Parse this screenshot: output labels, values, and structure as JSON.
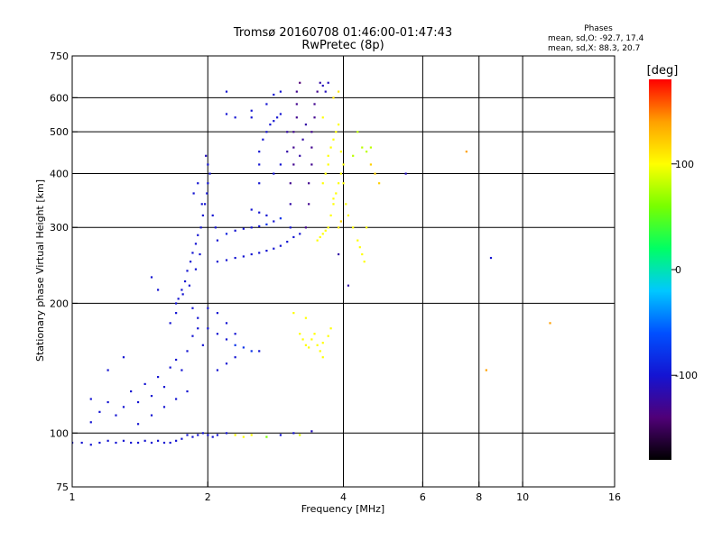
{
  "chart_data": {
    "type": "scatter",
    "title": "Tromsø 20160708 01:46:00-01:47:43",
    "subtitle": "RwPretec (8p)",
    "xlabel": "Frequency [MHz]",
    "ylabel": "Stationary phase Virtual Height [km]",
    "x_scale": "log",
    "y_scale": "log",
    "xlim": [
      1,
      16
    ],
    "ylim": [
      75,
      750
    ],
    "x_ticks": [
      1,
      2,
      4,
      6,
      8,
      10,
      16
    ],
    "x_tick_labels": [
      "1",
      "2",
      "4",
      "6",
      "8",
      "10",
      "16"
    ],
    "y_ticks": [
      75,
      100,
      200,
      300,
      400,
      500,
      600,
      750
    ],
    "y_tick_labels": [
      "75",
      "100",
      "200",
      "300",
      "400",
      "500",
      "600",
      "750"
    ],
    "x_grid": [
      2,
      4,
      6,
      8,
      10
    ],
    "y_grid": [
      100,
      200,
      300,
      400,
      500,
      600
    ],
    "grid": true,
    "stats": {
      "heading": "Phases",
      "line_o": "mean, sd,O: -92.7, 17.4",
      "line_x": "mean, sd,X:  88.3, 20.7"
    },
    "colorbar": {
      "label": "[deg]",
      "ticks": [
        100,
        0,
        -100
      ],
      "tick_labels": [
        "100",
        "0",
        "-100"
      ],
      "range": [
        -180,
        180
      ],
      "colors": [
        "#000000",
        "#500078",
        "#1414d2",
        "#0050ff",
        "#00c8ff",
        "#00ff64",
        "#78ff00",
        "#ffff00",
        "#ffa000",
        "#ff0000"
      ]
    },
    "series": [
      {
        "points": [
          [
            1.0,
            95,
            -100
          ],
          [
            1.05,
            95,
            -100
          ],
          [
            1.1,
            94,
            -100
          ],
          [
            1.15,
            95,
            -100
          ],
          [
            1.2,
            96,
            -100
          ],
          [
            1.25,
            95,
            -100
          ],
          [
            1.3,
            96,
            -100
          ],
          [
            1.35,
            95,
            -100
          ],
          [
            1.4,
            95,
            -100
          ],
          [
            1.45,
            96,
            -100
          ],
          [
            1.5,
            95,
            -100
          ],
          [
            1.55,
            96,
            -100
          ],
          [
            1.6,
            95,
            -100
          ],
          [
            1.65,
            95,
            -100
          ],
          [
            1.7,
            96,
            -100
          ],
          [
            1.75,
            97,
            -100
          ],
          [
            1.8,
            99,
            -100
          ],
          [
            1.85,
            98,
            -100
          ],
          [
            1.9,
            99,
            -100
          ],
          [
            1.95,
            100,
            -100
          ],
          [
            2.0,
            99,
            -100
          ],
          [
            2.05,
            98,
            -100
          ],
          [
            2.1,
            99,
            -100
          ],
          [
            2.2,
            100,
            -100
          ],
          [
            2.3,
            99,
            100
          ],
          [
            2.4,
            98,
            100
          ],
          [
            2.5,
            99,
            100
          ],
          [
            2.7,
            98,
            60
          ],
          [
            2.9,
            99,
            -100
          ],
          [
            3.1,
            100,
            -100
          ],
          [
            3.2,
            99,
            90
          ],
          [
            3.4,
            101,
            -110
          ],
          [
            1.1,
            106,
            -100
          ],
          [
            1.15,
            112,
            -100
          ],
          [
            1.2,
            118,
            -100
          ],
          [
            1.25,
            110,
            -100
          ],
          [
            1.3,
            115,
            -100
          ],
          [
            1.35,
            125,
            -100
          ],
          [
            1.4,
            118,
            -100
          ],
          [
            1.45,
            130,
            -100
          ],
          [
            1.5,
            122,
            -100
          ],
          [
            1.55,
            135,
            -100
          ],
          [
            1.6,
            128,
            -100
          ],
          [
            1.65,
            142,
            -100
          ],
          [
            1.7,
            148,
            -100
          ],
          [
            1.75,
            140,
            -100
          ],
          [
            1.8,
            155,
            -100
          ],
          [
            1.85,
            168,
            -100
          ],
          [
            1.9,
            175,
            -100
          ],
          [
            1.95,
            160,
            -100
          ],
          [
            1.2,
            140,
            -100
          ],
          [
            1.3,
            150,
            -100
          ],
          [
            1.1,
            120,
            -100
          ],
          [
            1.5,
            110,
            -100
          ],
          [
            1.6,
            115,
            -100
          ],
          [
            1.7,
            120,
            -100
          ],
          [
            1.8,
            125,
            -100
          ],
          [
            1.4,
            105,
            -100
          ],
          [
            1.65,
            180,
            -100
          ],
          [
            1.7,
            190,
            -100
          ],
          [
            1.72,
            205,
            -100
          ],
          [
            1.75,
            215,
            -100
          ],
          [
            1.78,
            225,
            -100
          ],
          [
            1.8,
            238,
            -100
          ],
          [
            1.83,
            250,
            -100
          ],
          [
            1.85,
            262,
            -100
          ],
          [
            1.88,
            275,
            -100
          ],
          [
            1.9,
            288,
            -100
          ],
          [
            1.93,
            300,
            -100
          ],
          [
            1.95,
            320,
            -100
          ],
          [
            1.97,
            340,
            -100
          ],
          [
            1.99,
            360,
            -100
          ],
          [
            2.0,
            380,
            -100
          ],
          [
            2.02,
            400,
            -100
          ],
          [
            2.0,
            420,
            -100
          ],
          [
            1.98,
            440,
            -110
          ],
          [
            2.05,
            320,
            -100
          ],
          [
            2.08,
            300,
            -100
          ],
          [
            2.1,
            280,
            -100
          ],
          [
            1.92,
            260,
            -100
          ],
          [
            1.88,
            240,
            -100
          ],
          [
            1.82,
            220,
            -100
          ],
          [
            1.76,
            210,
            -100
          ],
          [
            1.7,
            200,
            -100
          ],
          [
            1.85,
            195,
            -100
          ],
          [
            1.9,
            185,
            -100
          ],
          [
            2.0,
            175,
            -100
          ],
          [
            2.1,
            170,
            -100
          ],
          [
            2.2,
            165,
            -100
          ],
          [
            2.3,
            160,
            -80
          ],
          [
            2.4,
            158,
            -80
          ],
          [
            2.5,
            155,
            -80
          ],
          [
            2.6,
            155,
            -100
          ],
          [
            1.86,
            360,
            -100
          ],
          [
            1.9,
            380,
            -100
          ],
          [
            1.94,
            340,
            -100
          ],
          [
            2.1,
            250,
            -100
          ],
          [
            2.2,
            252,
            -100
          ],
          [
            2.3,
            255,
            -100
          ],
          [
            2.4,
            257,
            -100
          ],
          [
            2.5,
            260,
            -100
          ],
          [
            2.6,
            262,
            -100
          ],
          [
            2.7,
            265,
            -100
          ],
          [
            2.8,
            268,
            -100
          ],
          [
            2.9,
            272,
            -100
          ],
          [
            3.0,
            278,
            -100
          ],
          [
            3.1,
            285,
            -100
          ],
          [
            3.2,
            290,
            -100
          ],
          [
            2.2,
            290,
            -90
          ],
          [
            2.3,
            295,
            -100
          ],
          [
            2.4,
            298,
            -100
          ],
          [
            2.5,
            300,
            -100
          ],
          [
            2.6,
            302,
            -100
          ],
          [
            2.7,
            305,
            -80
          ],
          [
            2.8,
            310,
            -100
          ],
          [
            2.9,
            315,
            -80
          ],
          [
            2.5,
            330,
            -100
          ],
          [
            2.6,
            325,
            -100
          ],
          [
            2.7,
            320,
            -100
          ],
          [
            2.6,
            380,
            -100
          ],
          [
            2.6,
            420,
            -100
          ],
          [
            2.6,
            450,
            -100
          ],
          [
            2.65,
            480,
            -100
          ],
          [
            2.7,
            500,
            -100
          ],
          [
            2.75,
            520,
            -100
          ],
          [
            2.8,
            530,
            -100
          ],
          [
            2.85,
            540,
            -100
          ],
          [
            2.9,
            550,
            -100
          ],
          [
            2.2,
            550,
            -100
          ],
          [
            2.3,
            540,
            -100
          ],
          [
            2.5,
            540,
            -100
          ],
          [
            2.8,
            400,
            -100
          ],
          [
            2.9,
            420,
            -100
          ],
          [
            3.05,
            300,
            -100
          ],
          [
            3.05,
            340,
            -120
          ],
          [
            3.05,
            380,
            -130
          ],
          [
            3.1,
            420,
            -130
          ],
          [
            3.1,
            460,
            -130
          ],
          [
            3.1,
            500,
            -130
          ],
          [
            3.15,
            540,
            -130
          ],
          [
            3.15,
            580,
            -130
          ],
          [
            3.15,
            620,
            -130
          ],
          [
            3.2,
            650,
            -140
          ],
          [
            3.3,
            300,
            -130
          ],
          [
            3.35,
            340,
            -130
          ],
          [
            3.35,
            380,
            -130
          ],
          [
            3.4,
            420,
            -130
          ],
          [
            3.4,
            460,
            -130
          ],
          [
            3.4,
            500,
            -130
          ],
          [
            3.45,
            540,
            -130
          ],
          [
            3.45,
            580,
            -130
          ],
          [
            3.5,
            620,
            -130
          ],
          [
            3.55,
            650,
            -120
          ],
          [
            3.6,
            640,
            -110
          ],
          [
            3.65,
            620,
            -110
          ],
          [
            3.7,
            650,
            -110
          ],
          [
            3.2,
            440,
            -120
          ],
          [
            3.25,
            480,
            -120
          ],
          [
            3.3,
            520,
            -120
          ],
          [
            3.0,
            450,
            -120
          ],
          [
            3.0,
            500,
            -120
          ],
          [
            3.5,
            280,
            100
          ],
          [
            3.55,
            285,
            100
          ],
          [
            3.6,
            290,
            100
          ],
          [
            3.65,
            295,
            100
          ],
          [
            3.7,
            300,
            100
          ],
          [
            3.75,
            320,
            100
          ],
          [
            3.8,
            340,
            100
          ],
          [
            3.85,
            360,
            100
          ],
          [
            3.9,
            380,
            100
          ],
          [
            3.95,
            400,
            100
          ],
          [
            4.0,
            420,
            100
          ],
          [
            3.7,
            440,
            100
          ],
          [
            3.75,
            460,
            100
          ],
          [
            3.8,
            480,
            100
          ],
          [
            3.85,
            500,
            100
          ],
          [
            3.9,
            520,
            100
          ],
          [
            3.6,
            540,
            100
          ],
          [
            3.95,
            450,
            100
          ],
          [
            4.0,
            380,
            100
          ],
          [
            4.05,
            340,
            100
          ],
          [
            4.1,
            320,
            100
          ],
          [
            3.9,
            300,
            110
          ],
          [
            3.95,
            310,
            120
          ],
          [
            4.2,
            300,
            100
          ],
          [
            4.3,
            280,
            100
          ],
          [
            4.35,
            270,
            100
          ],
          [
            4.4,
            260,
            100
          ],
          [
            4.45,
            250,
            100
          ],
          [
            4.5,
            300,
            100
          ],
          [
            4.6,
            420,
            120
          ],
          [
            4.7,
            400,
            120
          ],
          [
            4.8,
            380,
            120
          ],
          [
            3.6,
            380,
            100
          ],
          [
            3.65,
            400,
            100
          ],
          [
            3.7,
            420,
            100
          ],
          [
            3.8,
            350,
            100
          ],
          [
            3.8,
            600,
            110
          ],
          [
            3.9,
            620,
            110
          ],
          [
            3.2,
            170,
            100
          ],
          [
            3.25,
            165,
            100
          ],
          [
            3.3,
            160,
            100
          ],
          [
            3.35,
            158,
            100
          ],
          [
            3.4,
            165,
            100
          ],
          [
            3.45,
            170,
            100
          ],
          [
            3.5,
            160,
            100
          ],
          [
            3.55,
            155,
            100
          ],
          [
            3.6,
            162,
            100
          ],
          [
            3.7,
            168,
            100
          ],
          [
            3.75,
            175,
            100
          ],
          [
            3.3,
            185,
            100
          ],
          [
            3.1,
            190,
            100
          ],
          [
            3.6,
            150,
            100
          ],
          [
            4.3,
            500,
            80
          ],
          [
            4.4,
            460,
            80
          ],
          [
            4.5,
            450,
            80
          ],
          [
            4.6,
            460,
            80
          ],
          [
            4.2,
            440,
            80
          ],
          [
            2.2,
            620,
            -100
          ],
          [
            2.5,
            560,
            -100
          ],
          [
            2.7,
            580,
            -100
          ],
          [
            2.8,
            610,
            -100
          ],
          [
            2.9,
            620,
            -100
          ],
          [
            5.5,
            400,
            -110
          ],
          [
            7.5,
            450,
            140
          ],
          [
            8.5,
            255,
            -100
          ],
          [
            8.3,
            140,
            140
          ],
          [
            11.5,
            180,
            140
          ],
          [
            1.5,
            230,
            -100
          ],
          [
            1.55,
            215,
            -100
          ],
          [
            4.1,
            220,
            -120
          ],
          [
            3.9,
            260,
            -120
          ],
          [
            2.3,
            170,
            -100
          ],
          [
            2.2,
            180,
            -100
          ],
          [
            2.1,
            190,
            -100
          ],
          [
            2.0,
            195,
            -100
          ],
          [
            2.3,
            150,
            -100
          ],
          [
            2.2,
            145,
            -100
          ],
          [
            2.1,
            140,
            -100
          ]
        ]
      }
    ]
  }
}
